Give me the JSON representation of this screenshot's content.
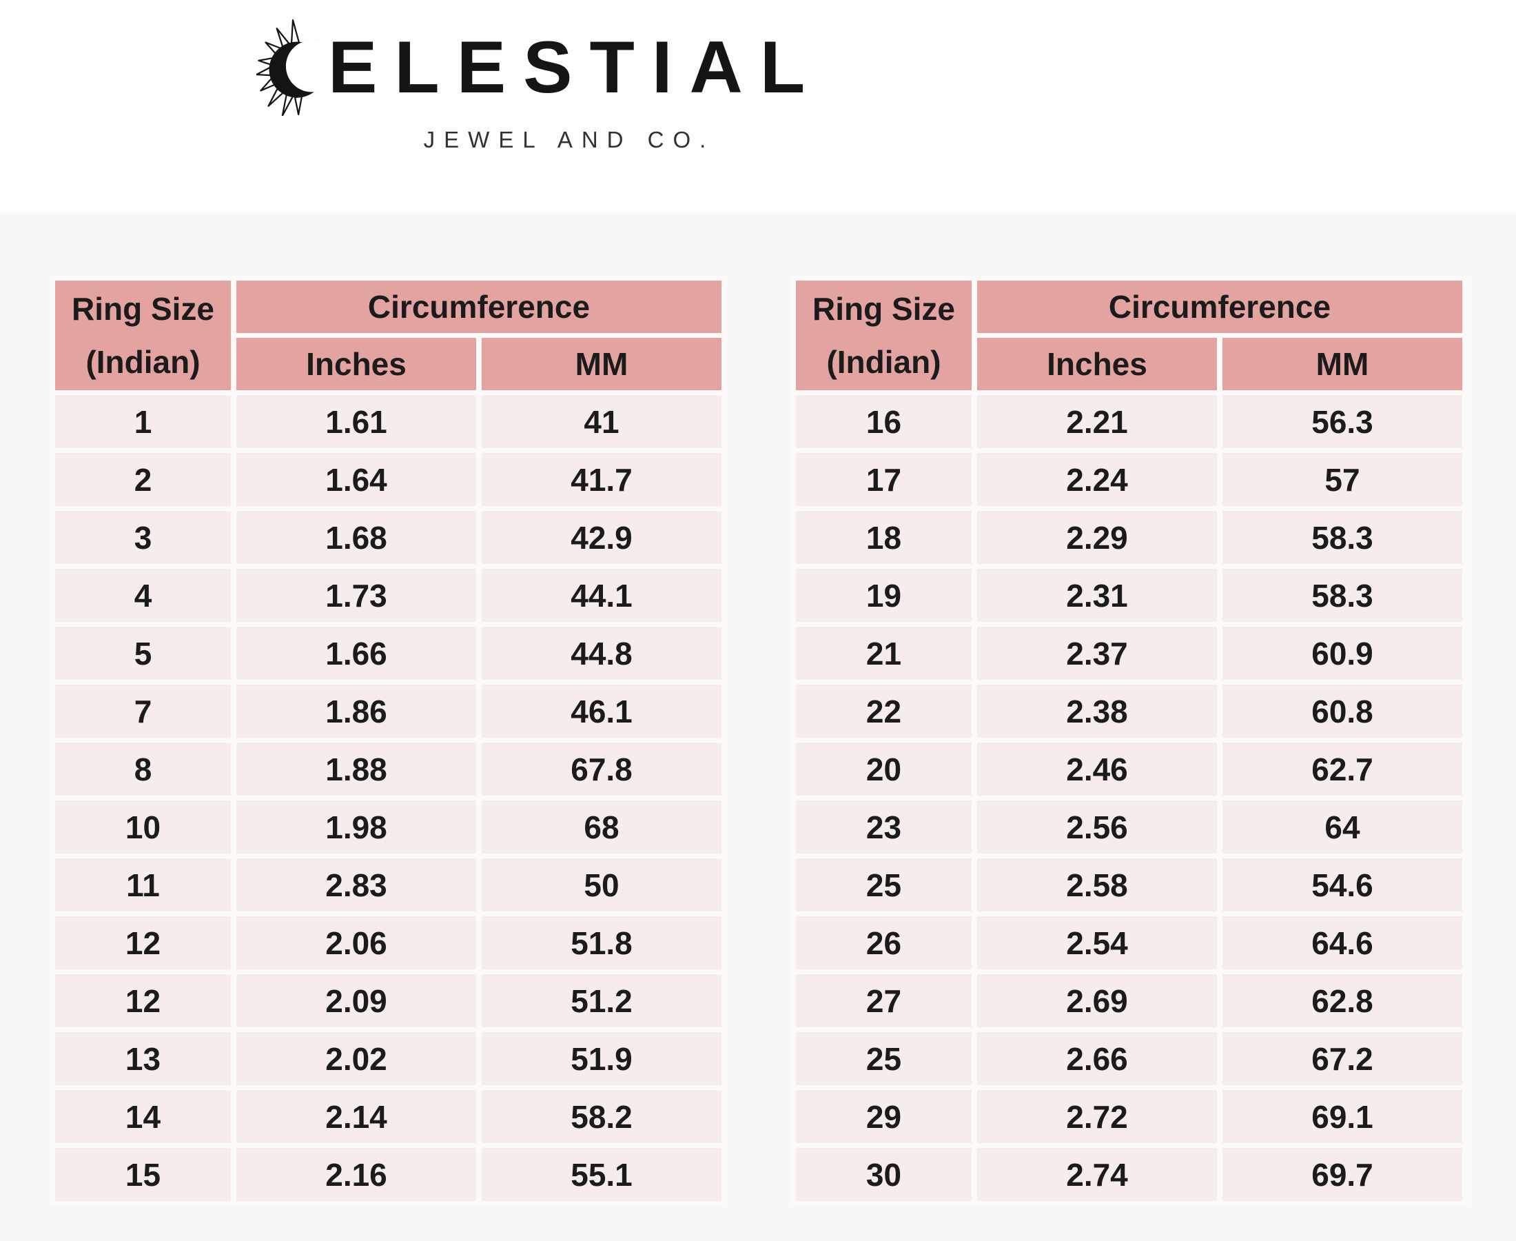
{
  "brand": {
    "name": "CELESTIAL",
    "wordmark_text": "ELESTIAL",
    "subtitle": "JEWEL AND CO.",
    "logo_icon": "crescent-moon-with-sun-rays-icon"
  },
  "table_header": {
    "ring_size_line1": "Ring Size",
    "ring_size_line2": "(Indian)",
    "circumference": "Circumference",
    "inches": "Inches",
    "mm": "MM"
  },
  "tables": {
    "left_rows": [
      [
        "1",
        "1.61",
        "41"
      ],
      [
        "2",
        "1.64",
        "41.7"
      ],
      [
        "3",
        "1.68",
        "42.9"
      ],
      [
        "4",
        "1.73",
        "44.1"
      ],
      [
        "5",
        "1.66",
        "44.8"
      ],
      [
        "7",
        "1.86",
        "46.1"
      ],
      [
        "8",
        "1.88",
        "67.8"
      ],
      [
        "10",
        "1.98",
        "68"
      ],
      [
        "11",
        "2.83",
        "50"
      ],
      [
        "12",
        "2.06",
        "51.8"
      ],
      [
        "12",
        "2.09",
        "51.2"
      ],
      [
        "13",
        "2.02",
        "51.9"
      ],
      [
        "14",
        "2.14",
        "58.2"
      ],
      [
        "15",
        "2.16",
        "55.1"
      ]
    ],
    "right_rows": [
      [
        "16",
        "2.21",
        "56.3"
      ],
      [
        "17",
        "2.24",
        "57"
      ],
      [
        "18",
        "2.29",
        "58.3"
      ],
      [
        "19",
        "2.31",
        "58.3"
      ],
      [
        "21",
        "2.37",
        "60.9"
      ],
      [
        "22",
        "2.38",
        "60.8"
      ],
      [
        "20",
        "2.46",
        "62.7"
      ],
      [
        "23",
        "2.56",
        "64"
      ],
      [
        "25",
        "2.58",
        "54.6"
      ],
      [
        "26",
        "2.54",
        "64.6"
      ],
      [
        "27",
        "2.69",
        "62.8"
      ],
      [
        "25",
        "2.66",
        "67.2"
      ],
      [
        "29",
        "2.72",
        "69.1"
      ],
      [
        "30",
        "2.74",
        "69.7"
      ]
    ]
  },
  "colors": {
    "header_bg": "#e2a3a1",
    "row_bg": "#f5eceb",
    "gap_bg": "#fcfaf9",
    "text": "#1b1b1b"
  }
}
